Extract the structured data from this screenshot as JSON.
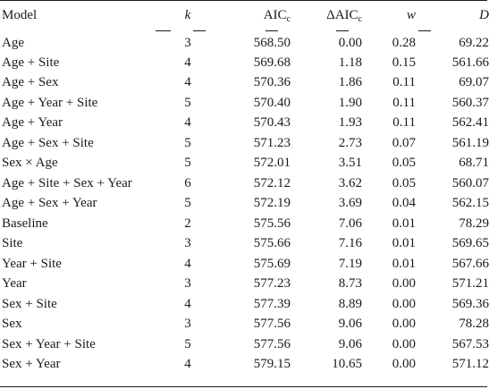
{
  "table": {
    "headers": {
      "model": "Model",
      "k": "k",
      "aic": "AIC",
      "aic_sub": "c",
      "daic": "ΔAIC",
      "daic_sub": "c",
      "w": "w",
      "d": "D"
    },
    "rows": [
      {
        "model": "Age",
        "k": "3",
        "aic": "568.50",
        "daic": "0.00",
        "w": "0.28",
        "d": "69.22"
      },
      {
        "model": "Age + Site",
        "k": "4",
        "aic": "569.68",
        "daic": "1.18",
        "w": "0.15",
        "d": "561.66"
      },
      {
        "model": "Age + Sex",
        "k": "4",
        "aic": "570.36",
        "daic": "1.86",
        "w": "0.11",
        "d": "69.07"
      },
      {
        "model": "Age + Year + Site",
        "k": "5",
        "aic": "570.40",
        "daic": "1.90",
        "w": "0.11",
        "d": "560.37"
      },
      {
        "model": "Age + Year",
        "k": "4",
        "aic": "570.43",
        "daic": "1.93",
        "w": "0.11",
        "d": "562.41"
      },
      {
        "model": "Age + Sex + Site",
        "k": "5",
        "aic": "571.23",
        "daic": "2.73",
        "w": "0.07",
        "d": "561.19"
      },
      {
        "model": "Sex × Age",
        "k": "5",
        "aic": "572.01",
        "daic": "3.51",
        "w": "0.05",
        "d": "68.71"
      },
      {
        "model": "Age + Site + Sex + Year",
        "k": "6",
        "aic": "572.12",
        "daic": "3.62",
        "w": "0.05",
        "d": "560.07"
      },
      {
        "model": "Age + Sex + Year",
        "k": "5",
        "aic": "572.19",
        "daic": "3.69",
        "w": "0.04",
        "d": "562.15"
      },
      {
        "model": "Baseline",
        "k": "2",
        "aic": "575.56",
        "daic": "7.06",
        "w": "0.01",
        "d": "78.29"
      },
      {
        "model": "Site",
        "k": "3",
        "aic": "575.66",
        "daic": "7.16",
        "w": "0.01",
        "d": "569.65"
      },
      {
        "model": "Year + Site",
        "k": "4",
        "aic": "575.69",
        "daic": "7.19",
        "w": "0.01",
        "d": "567.66"
      },
      {
        "model": "Year",
        "k": "3",
        "aic": "577.23",
        "daic": "8.73",
        "w": "0.00",
        "d": "571.21"
      },
      {
        "model": "Sex + Site",
        "k": "4",
        "aic": "577.39",
        "daic": "8.89",
        "w": "0.00",
        "d": "569.36"
      },
      {
        "model": "Sex",
        "k": "3",
        "aic": "577.56",
        "daic": "9.06",
        "w": "0.00",
        "d": "78.28"
      },
      {
        "model": "Sex + Year + Site",
        "k": "5",
        "aic": "577.56",
        "daic": "9.06",
        "w": "0.00",
        "d": "567.53"
      },
      {
        "model": "Sex + Year",
        "k": "4",
        "aic": "579.15",
        "daic": "10.65",
        "w": "0.00",
        "d": "571.12"
      }
    ]
  }
}
